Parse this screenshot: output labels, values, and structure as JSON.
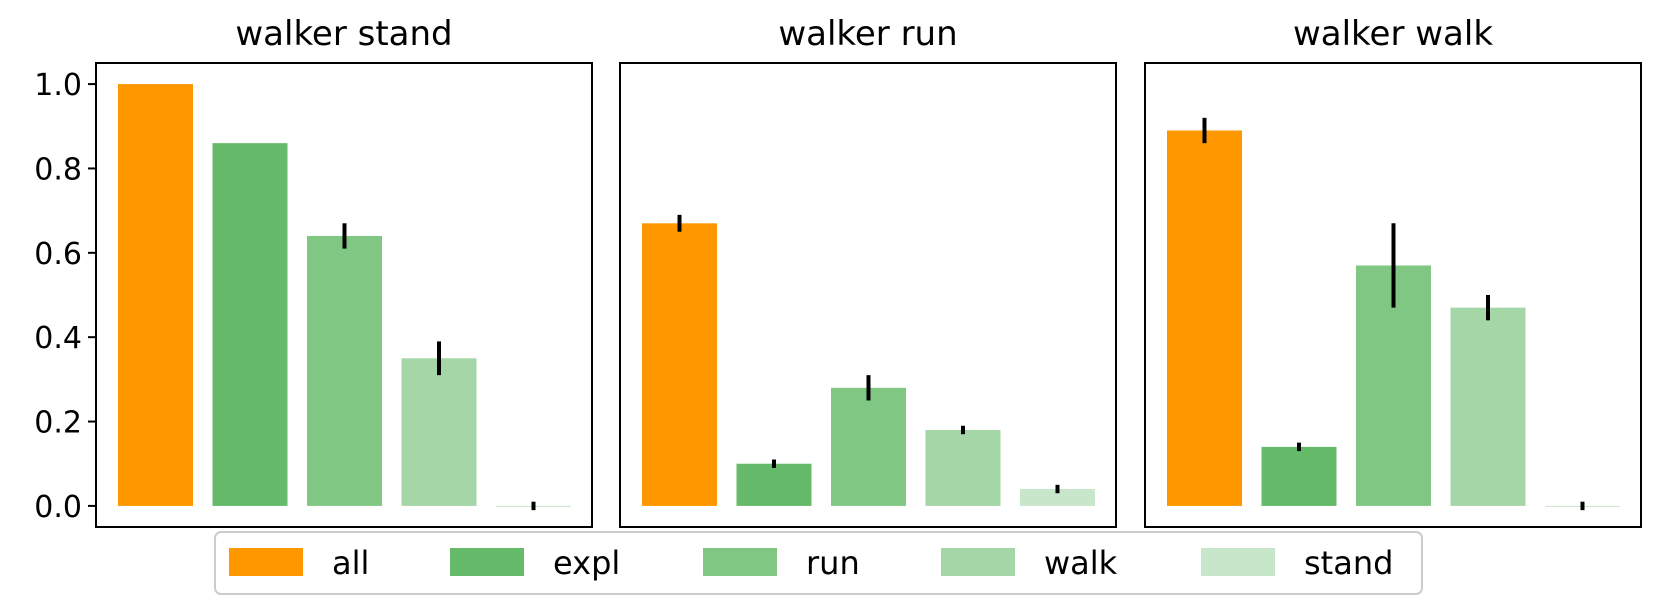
{
  "chart_data": [
    {
      "type": "bar",
      "title": "walker stand",
      "categories": [
        "all",
        "expl",
        "run",
        "walk",
        "stand"
      ],
      "values": [
        1.0,
        0.86,
        0.64,
        0.35,
        0.0
      ],
      "errors": [
        0.0,
        0.0,
        0.03,
        0.04,
        0.01
      ],
      "ylim": [
        -0.05,
        1.05
      ],
      "yticks": [
        "0.0",
        "0.2",
        "0.4",
        "0.6",
        "0.8",
        "1.0"
      ]
    },
    {
      "type": "bar",
      "title": "walker run",
      "categories": [
        "all",
        "expl",
        "run",
        "walk",
        "stand"
      ],
      "values": [
        0.67,
        0.1,
        0.28,
        0.18,
        0.04
      ],
      "errors": [
        0.02,
        0.01,
        0.03,
        0.01,
        0.01
      ],
      "ylim": [
        -0.05,
        1.05
      ]
    },
    {
      "type": "bar",
      "title": "walker walk",
      "categories": [
        "all",
        "expl",
        "run",
        "walk",
        "stand"
      ],
      "values": [
        0.89,
        0.14,
        0.57,
        0.47,
        0.0
      ],
      "errors": [
        0.03,
        0.01,
        0.1,
        0.03,
        0.01
      ],
      "ylim": [
        -0.05,
        1.05
      ]
    }
  ],
  "legend": {
    "placement": "bottom-center",
    "entries": [
      {
        "label": "all",
        "color": "#ff9800"
      },
      {
        "label": "expl",
        "color": "#66bb6a"
      },
      {
        "label": "run",
        "color": "#81c784"
      },
      {
        "label": "walk",
        "color": "#a5d6a7"
      },
      {
        "label": "stand",
        "color": "#c8e6c9"
      }
    ]
  },
  "colors": {
    "all": "#ff9800",
    "expl": "#66bb6a",
    "run": "#81c784",
    "walk": "#a5d6a7",
    "stand": "#c8e6c9"
  }
}
